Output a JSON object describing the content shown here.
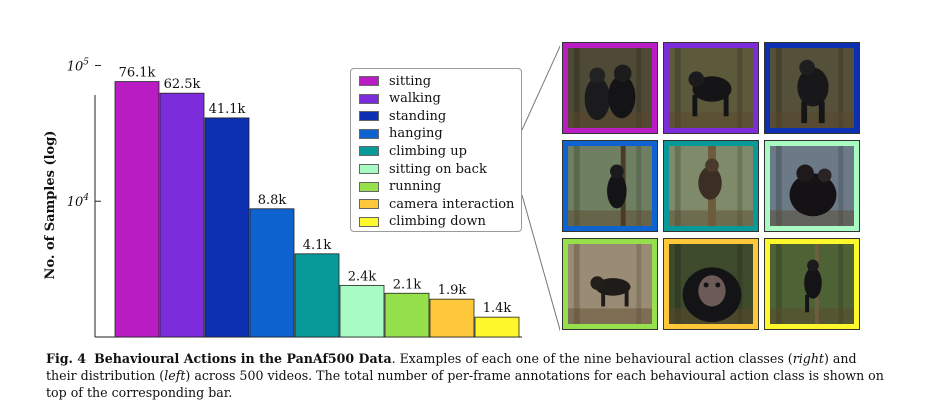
{
  "chart_data": {
    "type": "bar",
    "ylabel": "No. of Samples (log)",
    "yscale": "log",
    "ylim": [
      1000,
      130000
    ],
    "y_ticks": [
      {
        "value": 100000,
        "base": "10",
        "exp": "5"
      },
      {
        "value": 10000,
        "base": "10",
        "exp": "4"
      }
    ],
    "grid": false,
    "legend_position": "right",
    "categories": [
      "sitting",
      "walking",
      "standing",
      "hanging",
      "climbing up",
      "sitting on back",
      "running",
      "camera interaction",
      "climbing down"
    ],
    "values": [
      76100,
      62500,
      41100,
      8800,
      4100,
      2400,
      2100,
      1900,
      1400
    ],
    "data_labels": [
      "76.1k",
      "62.5k",
      "41.1k",
      "8.8k",
      "4.1k",
      "2.4k",
      "2.1k",
      "1.9k",
      "1.4k"
    ],
    "colors": [
      "#b81cc2",
      "#7d2cdc",
      "#0d2fb2",
      "#0f63d1",
      "#079a99",
      "#a8fbc2",
      "#95e04b",
      "#ffc83a",
      "#fcf82c"
    ]
  },
  "caption": {
    "label": "Fig. 4",
    "title": "Behavioural Actions in the PanAf500 Data",
    "text_before_right": ". Examples of each one of the nine behavioural action classes (",
    "right": "right",
    "text_between": ") and their distribution (",
    "left": "left",
    "text_after": ") across 500 videos. The total number of per-frame annotations for each behavioural action class is shown on top of the corresponding bar."
  },
  "image_grid": {
    "tiles": [
      {
        "class": "sitting",
        "border": "#b81cc2",
        "scene": "two-sitting"
      },
      {
        "class": "walking",
        "border": "#7d2cdc",
        "scene": "walking"
      },
      {
        "class": "standing",
        "border": "#0d2fb2",
        "scene": "standing"
      },
      {
        "class": "hanging",
        "border": "#0f63d1",
        "scene": "hanging"
      },
      {
        "class": "climbing up",
        "border": "#079a99",
        "scene": "climbing"
      },
      {
        "class": "sitting on back",
        "border": "#a8fbc2",
        "scene": "on-back"
      },
      {
        "class": "running",
        "border": "#95e04b",
        "scene": "running"
      },
      {
        "class": "camera interaction",
        "border": "#ffc83a",
        "scene": "face"
      },
      {
        "class": "climbing down",
        "border": "#fcf82c",
        "scene": "descend"
      }
    ]
  }
}
